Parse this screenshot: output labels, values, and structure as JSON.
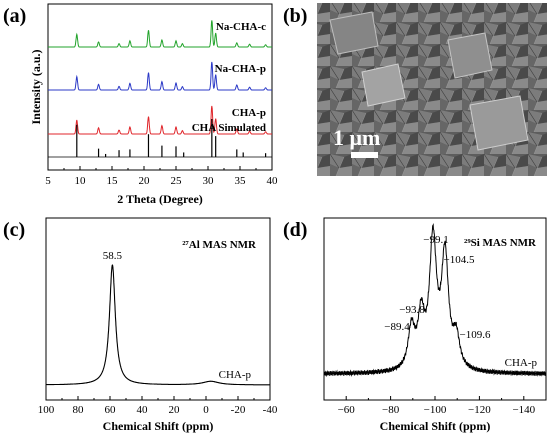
{
  "panels": {
    "a": "(a)",
    "b": "(b)",
    "c": "(c)",
    "d": "(d)"
  },
  "chart_data": [
    {
      "id": "xrd",
      "type": "line",
      "xlabel": "2 Theta (Degree)",
      "ylabel": "Intensity (a.u.)",
      "xlim": [
        5,
        40
      ],
      "xticks": [
        5,
        10,
        15,
        20,
        25,
        30,
        35,
        40
      ],
      "series": [
        {
          "name": "Na-CHA-c",
          "color": "#22a32b",
          "peaks": [
            [
              9.5,
              0.45
            ],
            [
              12.9,
              0.18
            ],
            [
              16.1,
              0.12
            ],
            [
              17.8,
              0.22
            ],
            [
              20.7,
              0.6
            ],
            [
              22.8,
              0.25
            ],
            [
              25.0,
              0.22
            ],
            [
              26.0,
              0.12
            ],
            [
              30.6,
              0.95
            ],
            [
              31.2,
              0.5
            ],
            [
              34.5,
              0.15
            ],
            [
              36.5,
              0.1
            ],
            [
              39.0,
              0.08
            ]
          ]
        },
        {
          "name": "Na-CHA-p",
          "color": "#2b39c7",
          "peaks": [
            [
              9.5,
              0.48
            ],
            [
              12.9,
              0.2
            ],
            [
              16.1,
              0.13
            ],
            [
              17.8,
              0.24
            ],
            [
              20.7,
              0.62
            ],
            [
              22.8,
              0.3
            ],
            [
              25.0,
              0.25
            ],
            [
              26.0,
              0.12
            ],
            [
              30.6,
              1.0
            ],
            [
              31.2,
              0.55
            ],
            [
              34.5,
              0.18
            ],
            [
              36.5,
              0.1
            ],
            [
              39.0,
              0.08
            ]
          ]
        },
        {
          "name": "CHA-p",
          "color": "#e0262b",
          "peaks": [
            [
              9.5,
              0.5
            ],
            [
              12.9,
              0.22
            ],
            [
              16.1,
              0.14
            ],
            [
              17.8,
              0.25
            ],
            [
              20.7,
              0.62
            ],
            [
              22.8,
              0.3
            ],
            [
              25.0,
              0.25
            ],
            [
              26.0,
              0.12
            ],
            [
              30.6,
              1.0
            ],
            [
              31.2,
              0.55
            ],
            [
              34.5,
              0.18
            ],
            [
              36.5,
              0.1
            ],
            [
              39.0,
              0.08
            ]
          ]
        },
        {
          "name": "CHA Simulated",
          "color": "#000000",
          "sticks": [
            [
              9.5,
              0.85
            ],
            [
              12.9,
              0.22
            ],
            [
              14.0,
              0.08
            ],
            [
              16.1,
              0.18
            ],
            [
              17.8,
              0.2
            ],
            [
              20.7,
              0.6
            ],
            [
              22.8,
              0.3
            ],
            [
              25.0,
              0.28
            ],
            [
              26.2,
              0.12
            ],
            [
              30.6,
              1.0
            ],
            [
              31.2,
              0.55
            ],
            [
              34.5,
              0.2
            ],
            [
              35.5,
              0.12
            ],
            [
              39.0,
              0.1
            ]
          ]
        }
      ]
    },
    {
      "id": "sem",
      "type": "image",
      "scale_bar": "1 μm"
    },
    {
      "id": "al_nmr",
      "type": "line",
      "title": "²⁷Al MAS NMR",
      "xlabel": "Chemical Shift (ppm)",
      "xlim": [
        100,
        -40
      ],
      "xticks": [
        100,
        80,
        60,
        40,
        20,
        0,
        -20,
        -40
      ],
      "xtick_labels": [
        "100",
        "80",
        "60",
        "40",
        "20",
        "0",
        "-20",
        "-40"
      ],
      "series": [
        {
          "name": "CHA-p",
          "color": "#000000",
          "peaks": [
            [
              58.5,
              1.0,
              2.2
            ],
            [
              -3,
              0.03,
              6
            ]
          ]
        }
      ],
      "annotations": [
        "58.5"
      ]
    },
    {
      "id": "si_nmr",
      "type": "line",
      "title": "²⁹Si MAS NMR",
      "xlabel": "Chemical Shift (ppm)",
      "xlim": [
        -50,
        -150
      ],
      "xticks": [
        -60,
        -80,
        -100,
        -120,
        -140
      ],
      "xtick_labels": [
        "−60",
        "−80",
        "−100",
        "−120",
        "−140"
      ],
      "series": [
        {
          "name": "CHA-p",
          "color": "#000000",
          "peaks": [
            [
              -89.4,
              0.32,
              1.8
            ],
            [
              -93.8,
              0.4,
              1.8
            ],
            [
              -99.1,
              1.0,
              1.9
            ],
            [
              -104.5,
              0.88,
              1.9
            ],
            [
              -109.6,
              0.24,
              1.8
            ]
          ]
        }
      ],
      "annotations": [
        "−89.4",
        "−93.8",
        "−99.1",
        "−104.5",
        "−109.6"
      ]
    }
  ]
}
